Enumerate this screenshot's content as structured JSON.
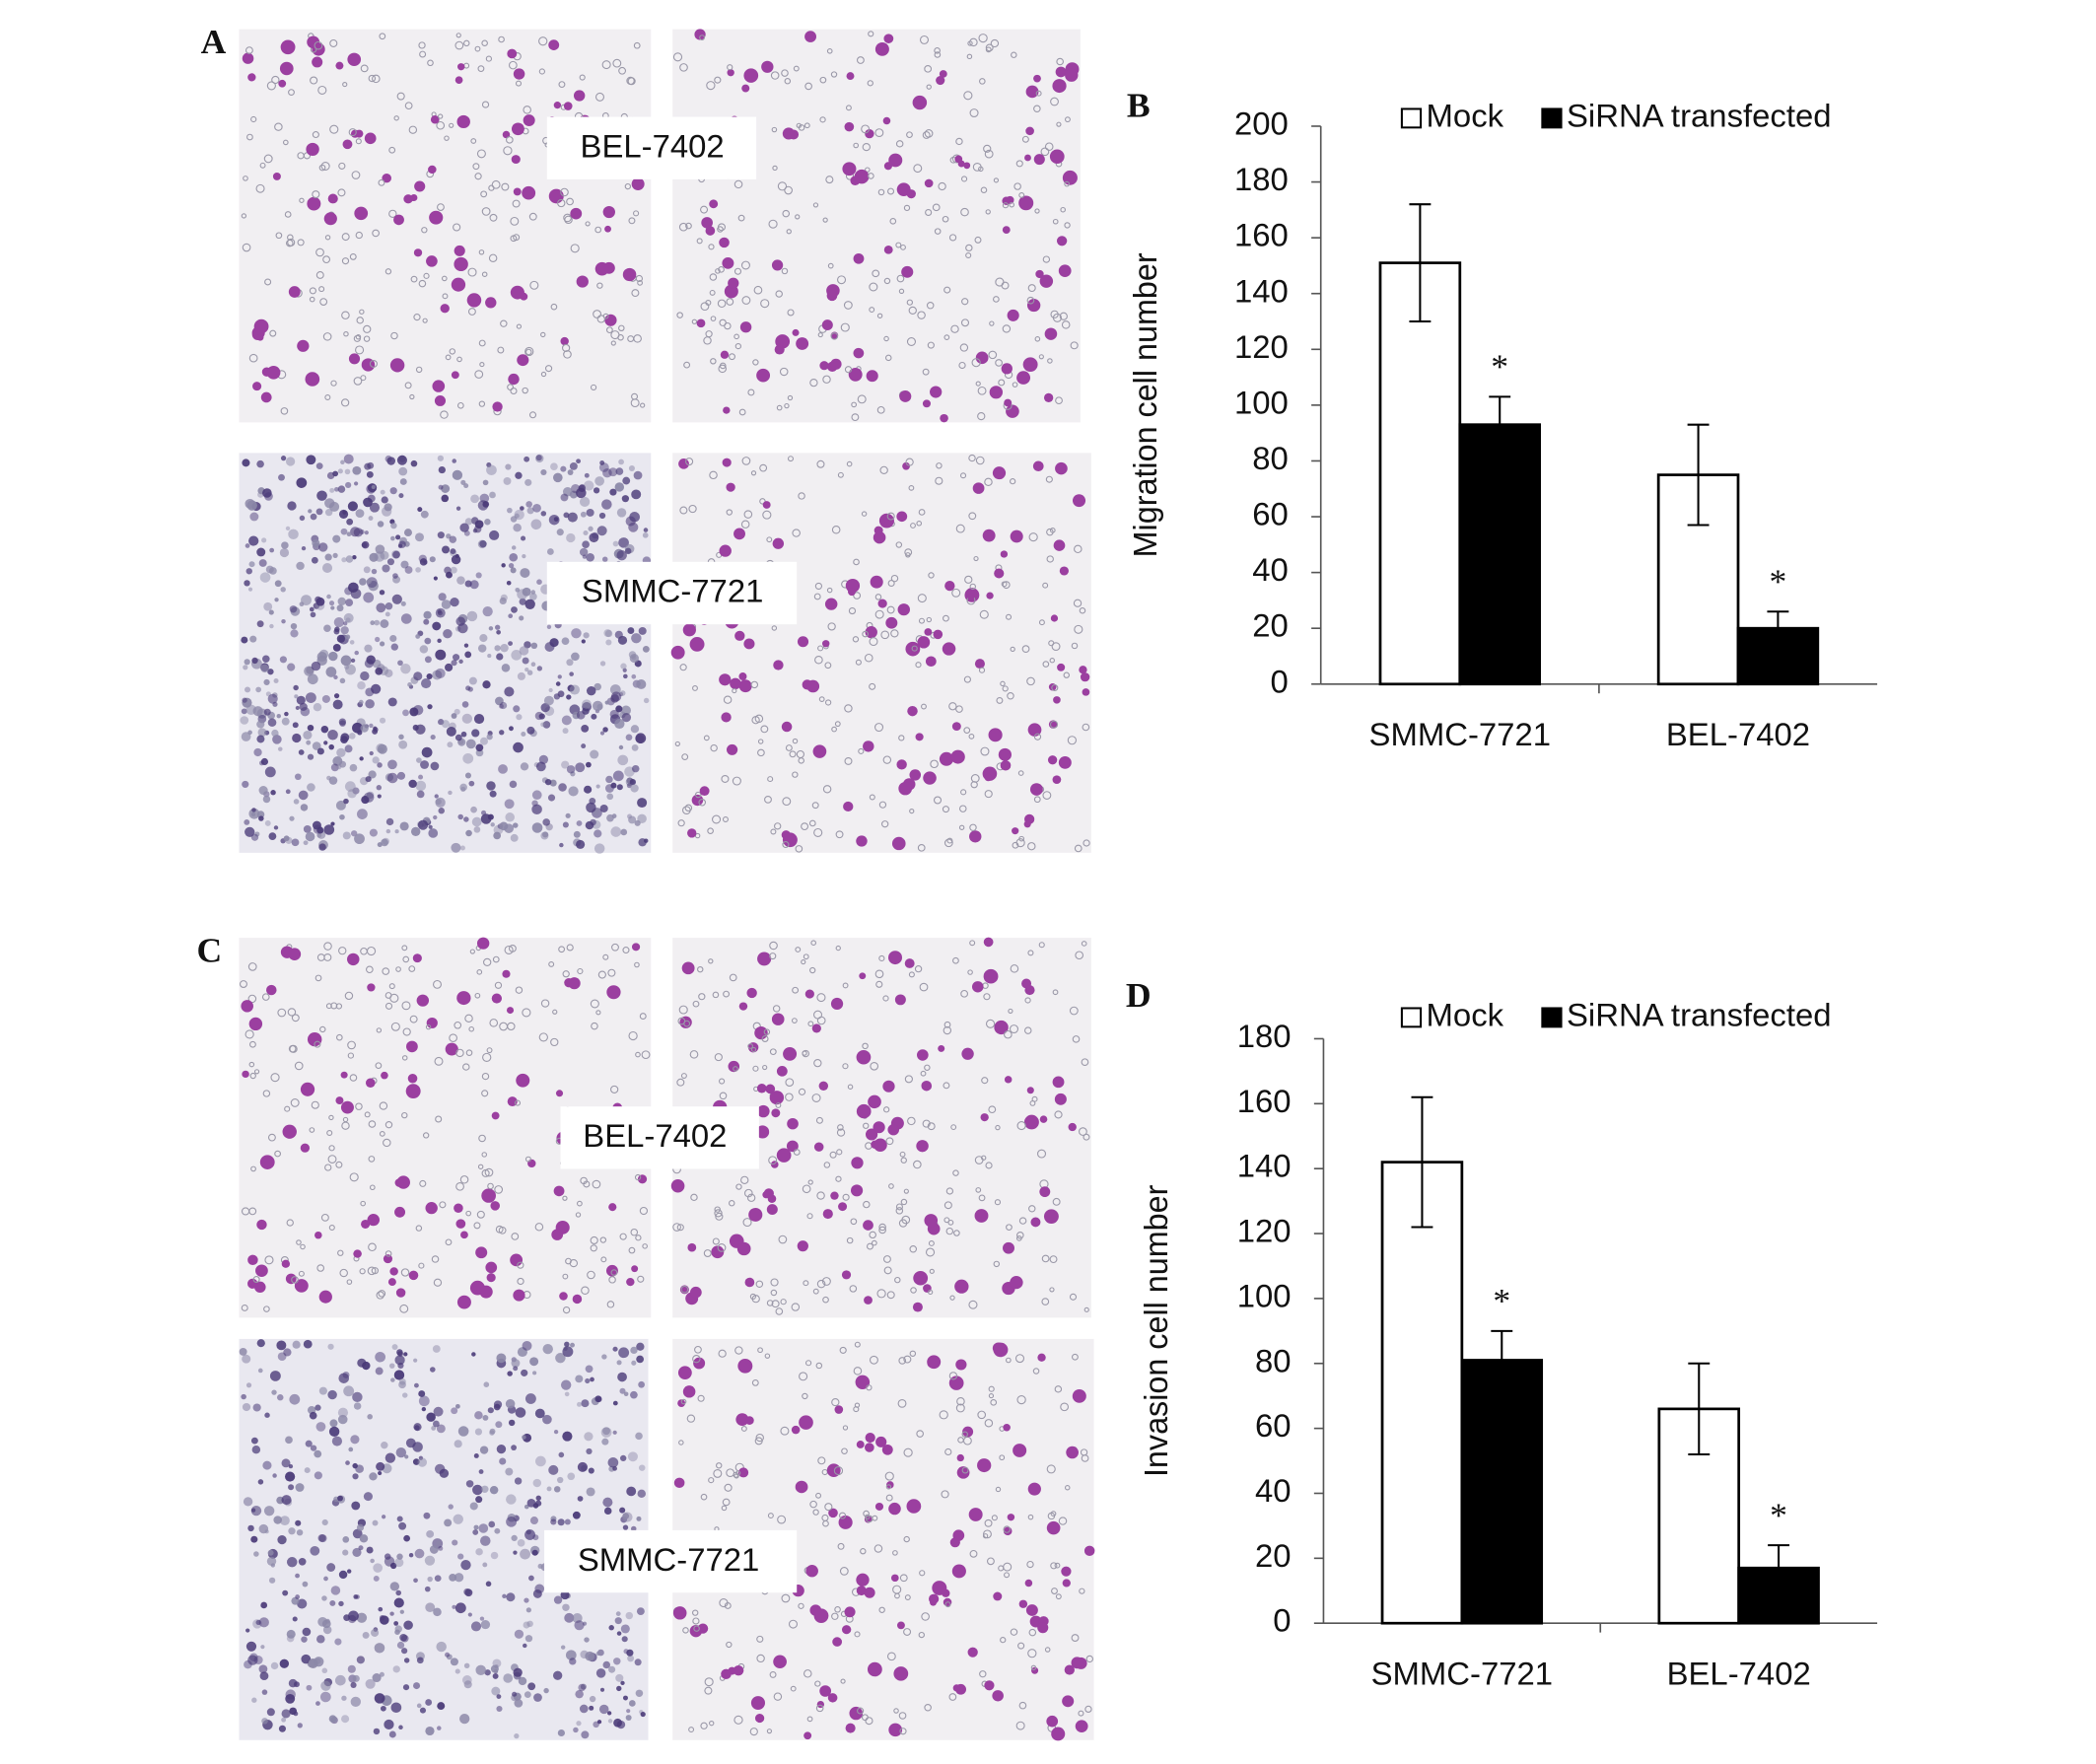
{
  "panels": {
    "A": {
      "label": "A",
      "top_label": "BEL-7402",
      "bottom_label": "SMMC-7721"
    },
    "C": {
      "label": "C",
      "top_label": "BEL-7402",
      "bottom_label": "SMMC-7721"
    }
  },
  "chart_data": [
    {
      "type": "bar",
      "label": "B",
      "ylabel": "Migration cell number",
      "categories": [
        "SMMC-7721",
        "BEL-7402"
      ],
      "series": [
        {
          "name": "Mock",
          "color": "#ffffff",
          "values": [
            151,
            75
          ],
          "errors": [
            21,
            18
          ]
        },
        {
          "name": "SiRNA transfected",
          "color": "#000000",
          "values": [
            93,
            20
          ],
          "errors": [
            10,
            6
          ],
          "annotations": [
            "*",
            "*"
          ]
        }
      ],
      "ylim": [
        0,
        200
      ],
      "yticks": [
        0,
        20,
        40,
        60,
        80,
        100,
        120,
        140,
        160,
        180,
        200
      ],
      "grid": false,
      "legend": "top"
    },
    {
      "type": "bar",
      "label": "D",
      "ylabel": "Invasion cell number",
      "categories": [
        "SMMC-7721",
        "BEL-7402"
      ],
      "series": [
        {
          "name": "Mock",
          "color": "#ffffff",
          "values": [
            142,
            66
          ],
          "errors": [
            20,
            14
          ]
        },
        {
          "name": "SiRNA transfected",
          "color": "#000000",
          "values": [
            81,
            17
          ],
          "errors": [
            9,
            7
          ],
          "annotations": [
            "*",
            "*"
          ]
        }
      ],
      "ylim": [
        0,
        180
      ],
      "yticks": [
        0,
        20,
        40,
        60,
        80,
        100,
        120,
        140,
        160,
        180
      ],
      "grid": false,
      "legend": "top"
    }
  ]
}
